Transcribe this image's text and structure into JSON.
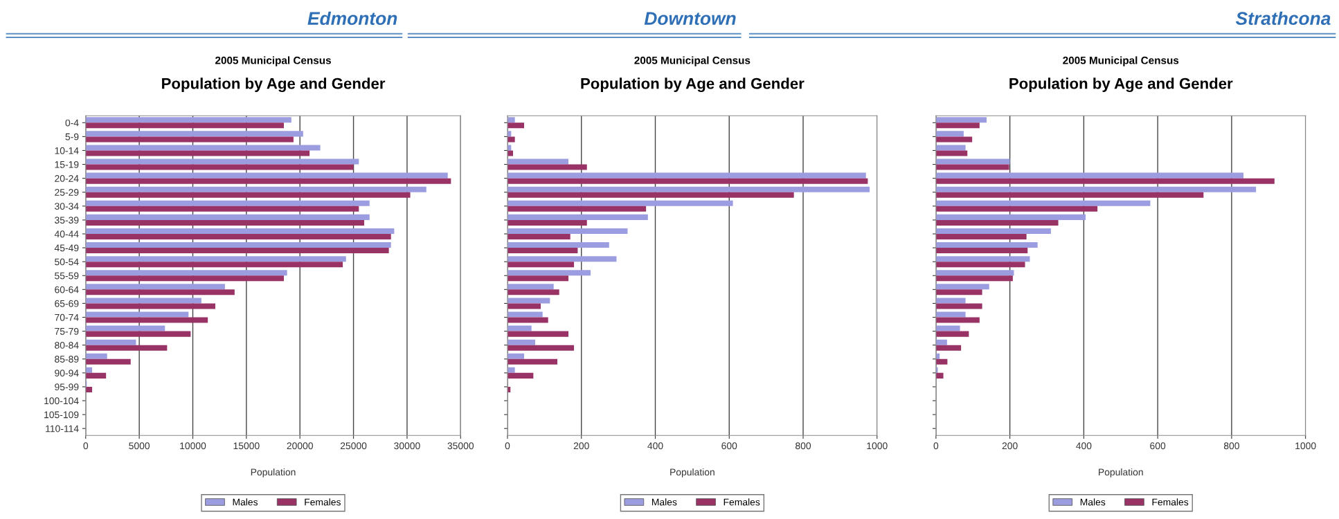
{
  "chart_data": [
    {
      "type": "bar",
      "orientation": "horizontal",
      "title": "Population by Age and Gender",
      "subtitle": "2005 Municipal Census",
      "annotations": [
        "Edmonton"
      ],
      "xlabel": "Population",
      "categories": [
        "0-4",
        "5-9",
        "10-14",
        "15-19",
        "20-24",
        "25-29",
        "30-34",
        "35-39",
        "40-44",
        "45-49",
        "50-54",
        "55-59",
        "60-64",
        "65-69",
        "70-74",
        "75-79",
        "80-84",
        "85-89",
        "90-94",
        "95-99",
        "100-104",
        "105-109",
        "110-114"
      ],
      "series": [
        {
          "name": "Males",
          "color": "#9c9ce0",
          "values": [
            19200,
            20300,
            21900,
            25500,
            33800,
            31800,
            26500,
            26500,
            28800,
            28500,
            24300,
            18800,
            13000,
            10800,
            9600,
            7400,
            4700,
            2000,
            600,
            100,
            10,
            0,
            0
          ]
        },
        {
          "name": "Females",
          "color": "#993366",
          "values": [
            18500,
            19400,
            20900,
            25000,
            34100,
            30300,
            25500,
            26000,
            28500,
            28300,
            24000,
            18500,
            13900,
            12100,
            11400,
            9800,
            7600,
            4200,
            1900,
            600,
            null,
            0,
            0
          ]
        }
      ],
      "xlim": [
        0,
        35000
      ],
      "xticks": [
        0,
        5000,
        10000,
        15000,
        20000,
        25000,
        30000,
        35000
      ],
      "grid": "x",
      "legend": "bottom"
    },
    {
      "type": "bar",
      "orientation": "horizontal",
      "title": "Population by Age and Gender",
      "subtitle": "2005 Municipal Census",
      "annotations": [
        "Downtown"
      ],
      "xlabel": "Population",
      "categories": [
        null,
        null,
        null,
        null,
        null,
        null,
        null,
        null,
        null,
        null,
        null,
        null,
        null,
        null,
        null,
        null,
        null,
        null,
        null,
        null,
        null,
        null,
        null
      ],
      "series": [
        {
          "name": "Males",
          "color": "#9c9ce0",
          "values": [
            20,
            10,
            10,
            165,
            970,
            980,
            610,
            380,
            325,
            275,
            295,
            225,
            125,
            115,
            95,
            65,
            75,
            45,
            20,
            null,
            0,
            0,
            0
          ]
        },
        {
          "name": "Females",
          "color": "#993366",
          "values": [
            45,
            20,
            15,
            215,
            975,
            775,
            375,
            215,
            170,
            190,
            180,
            165,
            140,
            90,
            110,
            165,
            180,
            135,
            70,
            8,
            0,
            0,
            0
          ]
        }
      ],
      "xlim": [
        0,
        1000
      ],
      "xticks": [
        0,
        200,
        400,
        600,
        800,
        1000
      ],
      "grid": "x",
      "legend": "bottom",
      "tick_labels": "x"
    },
    {
      "type": "bar",
      "orientation": "horizontal",
      "title": "Population by Age and Gender",
      "subtitle": "2005 Municipal Census",
      "annotations": [
        "Strathcona"
      ],
      "xlabel": "Population",
      "categories": [
        null,
        null,
        null,
        null,
        null,
        null,
        null,
        null,
        null,
        null,
        null,
        null,
        null,
        null,
        null,
        null,
        null,
        null,
        null,
        null,
        null,
        null,
        null
      ],
      "series": [
        {
          "name": "Males",
          "color": "#9c9ce0",
          "values": [
            137,
            75,
            80,
            200,
            832,
            866,
            580,
            405,
            311,
            275,
            254,
            211,
            144,
            80,
            80,
            65,
            30,
            10,
            5,
            null,
            0,
            0,
            0
          ]
        },
        {
          "name": "Females",
          "color": "#993366",
          "values": [
            118,
            98,
            85,
            198,
            916,
            724,
            437,
            331,
            245,
            248,
            241,
            208,
            125,
            125,
            118,
            89,
            68,
            31,
            20,
            null,
            0,
            0,
            0
          ]
        }
      ],
      "xlim": [
        0,
        1000
      ],
      "xticks": [
        0,
        200,
        400,
        600,
        800,
        1000
      ],
      "grid": "x",
      "legend": "bottom",
      "tick_labels": "x"
    }
  ]
}
